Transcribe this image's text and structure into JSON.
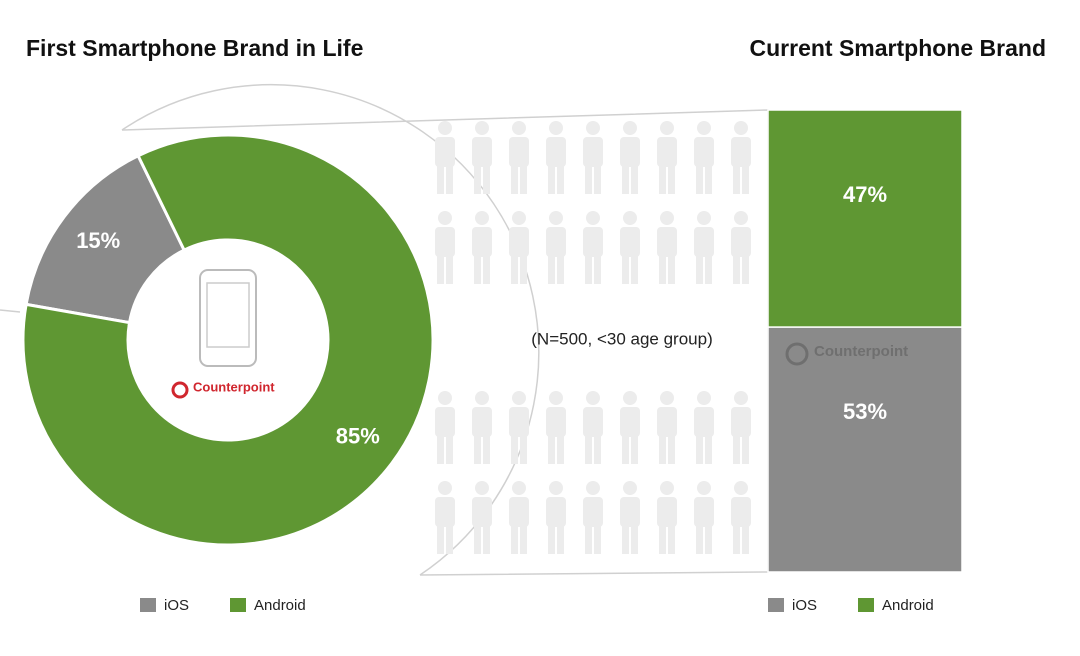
{
  "logo": "Counterpoint",
  "chart_data": [
    {
      "type": "pie",
      "title": "First Smartphone Brand in Life",
      "categories": [
        "iOS",
        "Android"
      ],
      "values": [
        15,
        85
      ],
      "value_labels": [
        "15%",
        "85%"
      ],
      "colors": [
        "#8a8a8a",
        "#5f9733"
      ],
      "legend": "bottom"
    },
    {
      "type": "stacked-bar",
      "title": "Current Smartphone Brand",
      "annotation": "(N=500, <30 age group)",
      "series": [
        {
          "name": "Android",
          "color": "#5f9733",
          "values": [
            47
          ],
          "value_labels": [
            "47%"
          ]
        },
        {
          "name": "iOS",
          "color": "#8a8a8a",
          "values": [
            53
          ],
          "value_labels": [
            "53%"
          ]
        }
      ],
      "legend": "bottom"
    }
  ]
}
